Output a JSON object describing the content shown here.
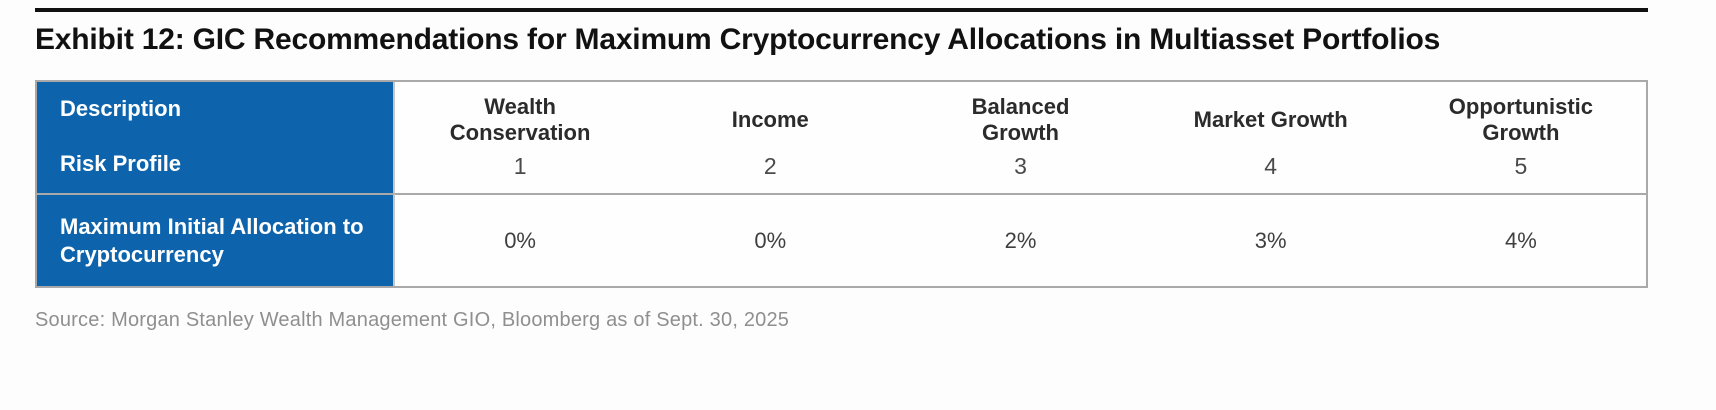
{
  "exhibit": {
    "title": "Exhibit 12: GIC Recommendations for Maximum Cryptocurrency Allocations in Multiasset Portfolios"
  },
  "table": {
    "corner_top_label": "Description",
    "corner_bottom_label": "Risk Profile",
    "row_label": "Maximum Initial Allocation to Cryptocurrency",
    "columns": [
      {
        "name": "Wealth Conservation",
        "risk_profile": "1",
        "max_allocation": "0%"
      },
      {
        "name": "Income",
        "risk_profile": "2",
        "max_allocation": "0%"
      },
      {
        "name": "Balanced Growth",
        "risk_profile": "3",
        "max_allocation": "2%"
      },
      {
        "name": "Market Growth",
        "risk_profile": "4",
        "max_allocation": "3%"
      },
      {
        "name": "Opportunistic Growth",
        "risk_profile": "5",
        "max_allocation": "4%"
      }
    ]
  },
  "source_note": "Source: Morgan Stanley Wealth Management GIO, Bloomberg as of Sept. 30, 2025",
  "colors": {
    "header_blue": "#0d64ac",
    "border_gray": "#a9a9a9",
    "title_black": "#111111",
    "source_gray": "#8f8f8f"
  }
}
